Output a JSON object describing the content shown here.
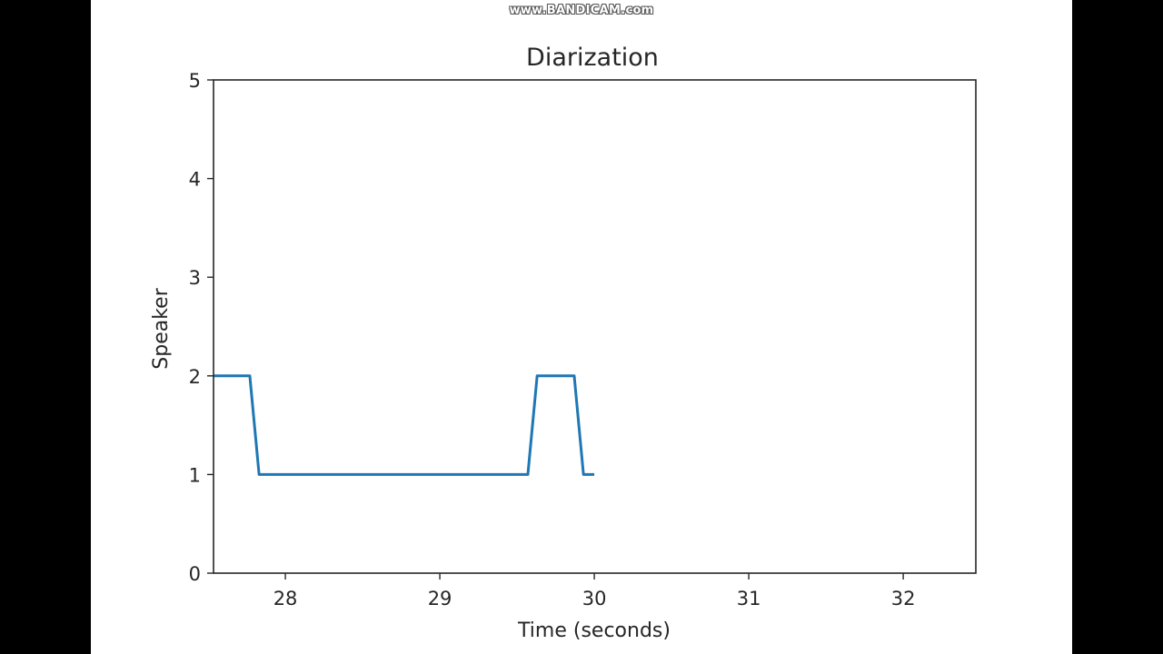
{
  "watermark": "www.BANDICAM.com",
  "colors": {
    "line": "#1f77b4",
    "axes": "#262626",
    "background": "#ffffff",
    "letterbox": "#000000"
  },
  "chart_data": {
    "type": "line",
    "title": "Diarization",
    "xlabel": "Time (seconds)",
    "ylabel": "Speaker",
    "xlim": [
      27.535,
      32.47
    ],
    "ylim": [
      0,
      5
    ],
    "xticks": [
      28,
      29,
      30,
      31,
      32
    ],
    "xtick_labels": [
      "28",
      "29",
      "30",
      "31",
      "32"
    ],
    "yticks": [
      0,
      1,
      2,
      3,
      4,
      5
    ],
    "ytick_labels": [
      "0",
      "1",
      "2",
      "3",
      "4",
      "5"
    ],
    "grid": false,
    "legend": null,
    "series": [
      {
        "name": "speaker",
        "x": [
          27.535,
          27.77,
          27.83,
          29.57,
          29.63,
          29.87,
          29.93,
          30.0
        ],
        "y": [
          2,
          2,
          1,
          1,
          2,
          2,
          1,
          1
        ]
      }
    ]
  }
}
